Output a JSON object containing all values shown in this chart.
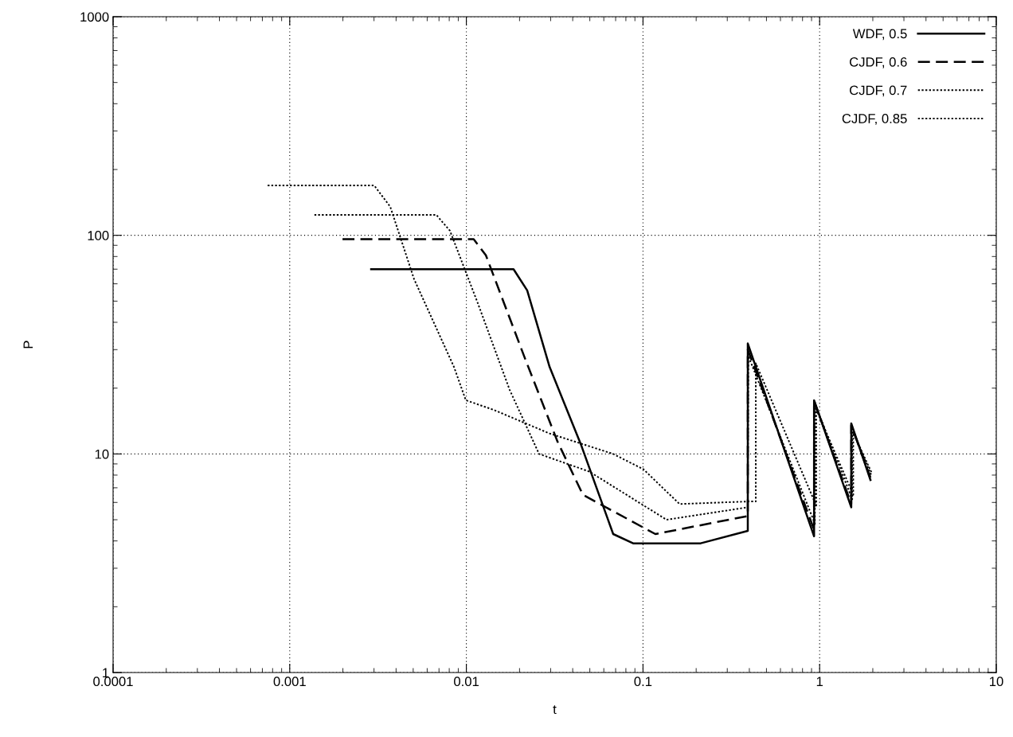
{
  "chart_data": {
    "type": "line",
    "xlabel": "t",
    "ylabel": "P",
    "log": "xy",
    "grid": true,
    "legend": "top right",
    "xlim": [
      0.0001,
      10
    ],
    "ylim": [
      1,
      1000
    ],
    "xticks": [
      {
        "value": 0.0001,
        "label": "0.0001"
      },
      {
        "value": 0.001,
        "label": "0.001"
      },
      {
        "value": 0.01,
        "label": "0.01"
      },
      {
        "value": 0.1,
        "label": "0.1"
      },
      1,
      10
    ],
    "yticks": [
      1,
      10,
      100,
      1000
    ],
    "series": [
      {
        "name": "WDF, 0.5",
        "color": "#000000",
        "line_style": "solid",
        "x": [
          0.00289,
          0.0185,
          0.0221,
          0.0296,
          0.0448,
          0.0678,
          0.0879,
          0.212,
          0.392,
          0.392,
          0.93,
          0.93,
          1.51,
          1.51,
          1.94
        ],
        "values": [
          70,
          70,
          56,
          25,
          10.9,
          4.3,
          3.9,
          3.9,
          4.45,
          32,
          4.2,
          17.6,
          5.7,
          13.8,
          7.6
        ]
      },
      {
        "name": "CJDF, 0.6",
        "color": "#000000",
        "line_style": "dashed",
        "x": [
          0.00199,
          0.011,
          0.0129,
          0.0216,
          0.0328,
          0.0457,
          0.1175,
          0.392,
          0.392,
          0.93,
          0.93,
          1.51,
          1.51,
          1.94
        ],
        "values": [
          96,
          96,
          81,
          27,
          11.4,
          6.5,
          4.3,
          5.2,
          30,
          4.5,
          17.5,
          5.9,
          13.5,
          7.8
        ]
      },
      {
        "name": "CJDF, 0.7",
        "color": "#000000",
        "line_style": "dotted",
        "x": [
          0.00138,
          0.00676,
          0.00807,
          0.0116,
          0.0176,
          0.0258,
          0.0497,
          0.136,
          0.392,
          0.395,
          0.94,
          0.94,
          1.53,
          1.53,
          1.96
        ],
        "values": [
          124,
          124,
          105,
          49,
          19.6,
          10,
          8.3,
          5,
          5.7,
          28,
          4.8,
          17,
          6.2,
          13,
          8
        ]
      },
      {
        "name": "CJDF, 0.85",
        "color": "#000000",
        "line_style": "dotted",
        "x": [
          0.00075,
          0.00301,
          0.00371,
          0.00506,
          0.00851,
          0.00993,
          0.0143,
          0.0296,
          0.0678,
          0.1007,
          0.161,
          0.394,
          0.435,
          0.435,
          0.957,
          0.957,
          1.55,
          1.55,
          1.97
        ],
        "values": [
          169,
          169,
          135,
          63,
          25,
          17.6,
          15.9,
          12.4,
          10,
          8.5,
          5.9,
          6.06,
          6.06,
          26,
          5.8,
          16,
          6.5,
          12.5,
          8.2
        ]
      }
    ]
  }
}
